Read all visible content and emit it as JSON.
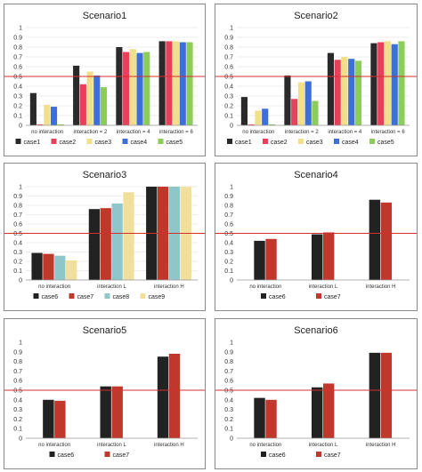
{
  "colors": {
    "case1": "#2a2a2a",
    "case2": "#e8405a",
    "case3": "#f2df8a",
    "case4": "#3d6fd8",
    "case5": "#8ccc5a",
    "case6": "#222222",
    "case7": "#c0382b",
    "case8": "#8fc6c9",
    "case9": "#f1df9c",
    "threshold": "#d32f2f",
    "grid": "#dddddd"
  },
  "chart_data": [
    {
      "type": "bar",
      "title": "Scenario1",
      "categories": [
        "no interaction",
        "interaction = 2",
        "interaction = 4",
        "interaction = 6"
      ],
      "series": [
        {
          "name": "case1",
          "values": [
            0.33,
            0.61,
            0.8,
            0.86
          ]
        },
        {
          "name": "case2",
          "values": [
            0.01,
            0.42,
            0.75,
            0.86
          ]
        },
        {
          "name": "case3",
          "values": [
            0.21,
            0.55,
            0.78,
            0.86
          ]
        },
        {
          "name": "case4",
          "values": [
            0.19,
            0.51,
            0.74,
            0.85
          ]
        },
        {
          "name": "case5",
          "values": [
            0.01,
            0.39,
            0.75,
            0.85
          ]
        }
      ],
      "threshold": 0.5,
      "ylim": [
        0,
        1
      ],
      "yticks": [
        "0",
        "0.1",
        "0.2",
        "0.3",
        "0.4",
        "0.5",
        "0.6",
        "0.7",
        "0.8",
        "0.9",
        "1"
      ],
      "grid": true,
      "legend": "bottom"
    },
    {
      "type": "bar",
      "title": "Scenario2",
      "categories": [
        "no interaction",
        "interaction = 2",
        "interaction = 4",
        "interaction = 6"
      ],
      "series": [
        {
          "name": "case1",
          "values": [
            0.29,
            0.51,
            0.74,
            0.84
          ]
        },
        {
          "name": "case2",
          "values": [
            0.01,
            0.27,
            0.67,
            0.85
          ]
        },
        {
          "name": "case3",
          "values": [
            0.15,
            0.44,
            0.7,
            0.86
          ]
        },
        {
          "name": "case4",
          "values": [
            0.17,
            0.45,
            0.68,
            0.83
          ]
        },
        {
          "name": "case5",
          "values": [
            0.01,
            0.25,
            0.66,
            0.86
          ]
        }
      ],
      "threshold": 0.5,
      "ylim": [
        0,
        1
      ],
      "yticks": [
        "0",
        "0.1",
        "0.2",
        "0.3",
        "0.4",
        "0.5",
        "0.6",
        "0.7",
        "0.8",
        "0.9",
        "1"
      ],
      "grid": true,
      "legend": "bottom"
    },
    {
      "type": "bar",
      "title": "Scenario3",
      "categories": [
        "no interaction",
        "interaction L",
        "interaction H"
      ],
      "series": [
        {
          "name": "case6",
          "values": [
            0.29,
            0.76,
            1.0
          ]
        },
        {
          "name": "case7",
          "values": [
            0.28,
            0.77,
            1.0
          ]
        },
        {
          "name": "case8",
          "values": [
            0.26,
            0.82,
            1.0
          ]
        },
        {
          "name": "case9",
          "values": [
            0.21,
            0.94,
            1.0
          ]
        }
      ],
      "threshold": 0.5,
      "ylim": [
        0,
        1
      ],
      "yticks": [
        "0",
        "0.1",
        "0.2",
        "0.3",
        "0.4",
        "0.5",
        "0.6",
        "0.7",
        "0.8",
        "0.9",
        "1"
      ],
      "grid": true,
      "legend": "bottom"
    },
    {
      "type": "bar",
      "title": "Scenario4",
      "categories": [
        "no interaction",
        "interaction L",
        "interaction H"
      ],
      "series": [
        {
          "name": "case6",
          "values": [
            0.42,
            0.49,
            0.86
          ]
        },
        {
          "name": "case7",
          "values": [
            0.44,
            0.51,
            0.83
          ]
        }
      ],
      "threshold": 0.5,
      "ylim": [
        0,
        1
      ],
      "yticks": [
        "0",
        "0.1",
        "0.2",
        "0.3",
        "0.4",
        "0.5",
        "0.6",
        "0.7",
        "0.8",
        "0.9",
        "1"
      ],
      "grid": false,
      "legend": "bottom"
    },
    {
      "type": "bar",
      "title": "Scenario5",
      "categories": [
        "no interaction",
        "interaction L",
        "interaction H"
      ],
      "series": [
        {
          "name": "case6",
          "values": [
            0.4,
            0.54,
            0.85
          ]
        },
        {
          "name": "case7",
          "values": [
            0.39,
            0.54,
            0.88
          ]
        }
      ],
      "threshold": 0.5,
      "ylim": [
        0,
        1
      ],
      "yticks": [
        "0",
        "0.1",
        "0.2",
        "0.3",
        "0.4",
        "0.5",
        "0.6",
        "0.7",
        "0.8",
        "0.9",
        "1"
      ],
      "grid": false,
      "legend": "bottom"
    },
    {
      "type": "bar",
      "title": "Scenario6",
      "categories": [
        "no interaction",
        "interaction L",
        "interaction H"
      ],
      "series": [
        {
          "name": "case6",
          "values": [
            0.42,
            0.53,
            0.89
          ]
        },
        {
          "name": "case7",
          "values": [
            0.4,
            0.57,
            0.89
          ]
        }
      ],
      "threshold": 0.5,
      "ylim": [
        0,
        1
      ],
      "yticks": [
        "0",
        "0.1",
        "0.2",
        "0.3",
        "0.4",
        "0.5",
        "0.6",
        "0.7",
        "0.8",
        "0.9",
        "1"
      ],
      "grid": false,
      "legend": "bottom"
    }
  ]
}
